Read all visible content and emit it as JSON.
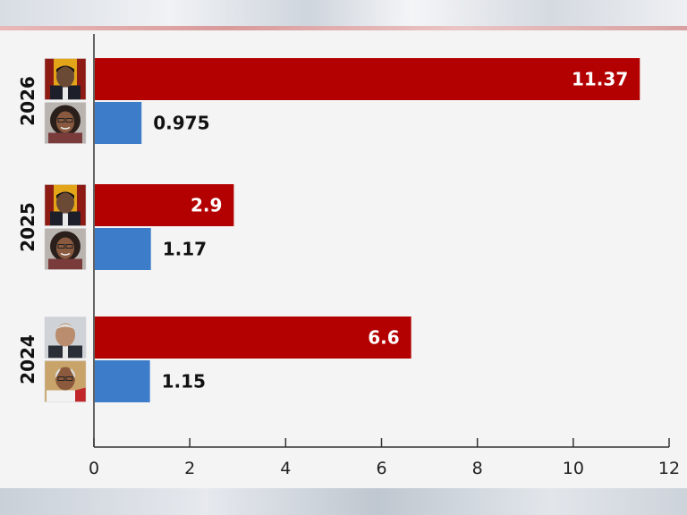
{
  "chart_data": {
    "type": "bar",
    "orientation": "horizontal",
    "categories": [
      "2026",
      "2025",
      "2024"
    ],
    "series": [
      {
        "values": [
          11.37,
          2.9,
          6.6
        ],
        "color": "#b30000"
      },
      {
        "values": [
          0.975,
          1.17,
          1.15
        ],
        "color": "#3d7cc9"
      }
    ],
    "value_labels": [
      [
        "11.37",
        "2.9",
        "6.6"
      ],
      [
        "0.975",
        "1.17",
        "1.15"
      ]
    ],
    "xlim": [
      0,
      12
    ],
    "xticks": [
      0,
      2,
      4,
      6,
      8,
      10,
      12
    ],
    "title": "",
    "xlabel": "",
    "ylabel": "",
    "grid": false,
    "category_icons": [
      [
        "portrait-man-flag-icon",
        "portrait-woman-icon"
      ],
      [
        "portrait-man-flag-icon",
        "portrait-woman-icon"
      ],
      [
        "portrait-older-man-icon",
        "portrait-bald-man-icon"
      ]
    ]
  }
}
